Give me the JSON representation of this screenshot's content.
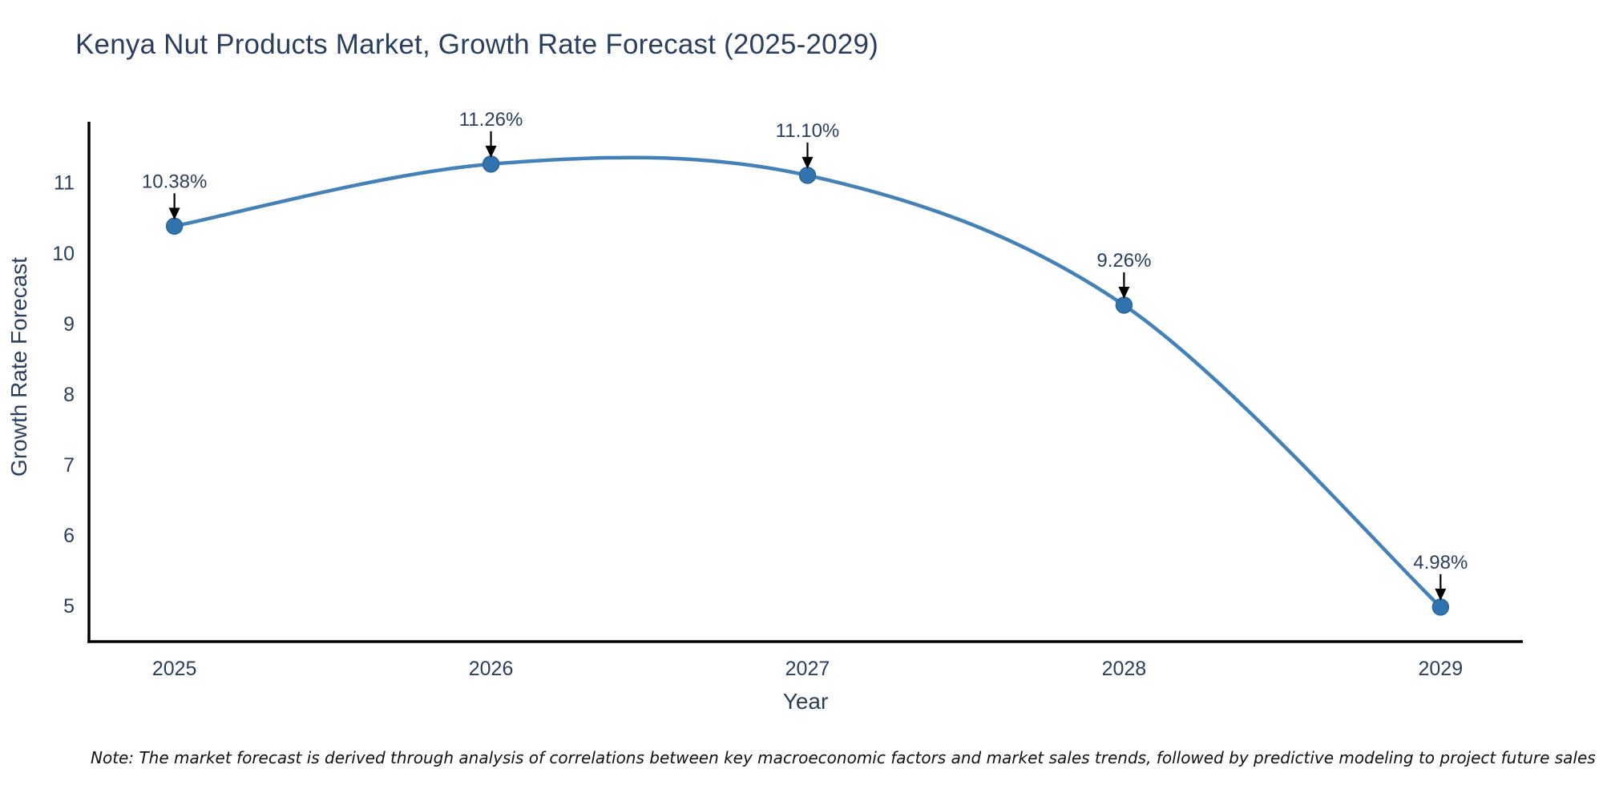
{
  "header": {
    "title": "Kenya Nut Products Market, Growth Rate Forecast (2025-2029)"
  },
  "footnote": {
    "text": "Note: The market forecast is derived through analysis of correlations between key macroeconomic factors and market sales trends, followed by predictive modeling to project future sales"
  },
  "chart_data": {
    "type": "line",
    "title": "Kenya Nut Products Market, Growth Rate Forecast (2025-2029)",
    "xlabel": "Year",
    "ylabel": "Growth Rate Forecast",
    "x": [
      2025,
      2026,
      2027,
      2028,
      2029
    ],
    "values": [
      10.38,
      11.26,
      11.1,
      9.26,
      4.98
    ],
    "point_labels": [
      "10.38%",
      "11.26%",
      "11.10%",
      "9.26%",
      "4.98%"
    ],
    "xticks": [
      "2025",
      "2026",
      "2027",
      "2028",
      "2029"
    ],
    "yticks": [
      5,
      6,
      7,
      8,
      9,
      10,
      11
    ],
    "xlim": [
      2024.73,
      2029.26
    ],
    "ylim": [
      4.49,
      11.86
    ],
    "grid": false,
    "legend_position": "none",
    "colors": {
      "line": "#4381b8",
      "marker": "#3173ad",
      "marker_edge": "#2b669c",
      "axis": "#000000",
      "text": "#2a3f5f",
      "annotation_arrow": "#000000",
      "background": "#ffffff"
    }
  }
}
